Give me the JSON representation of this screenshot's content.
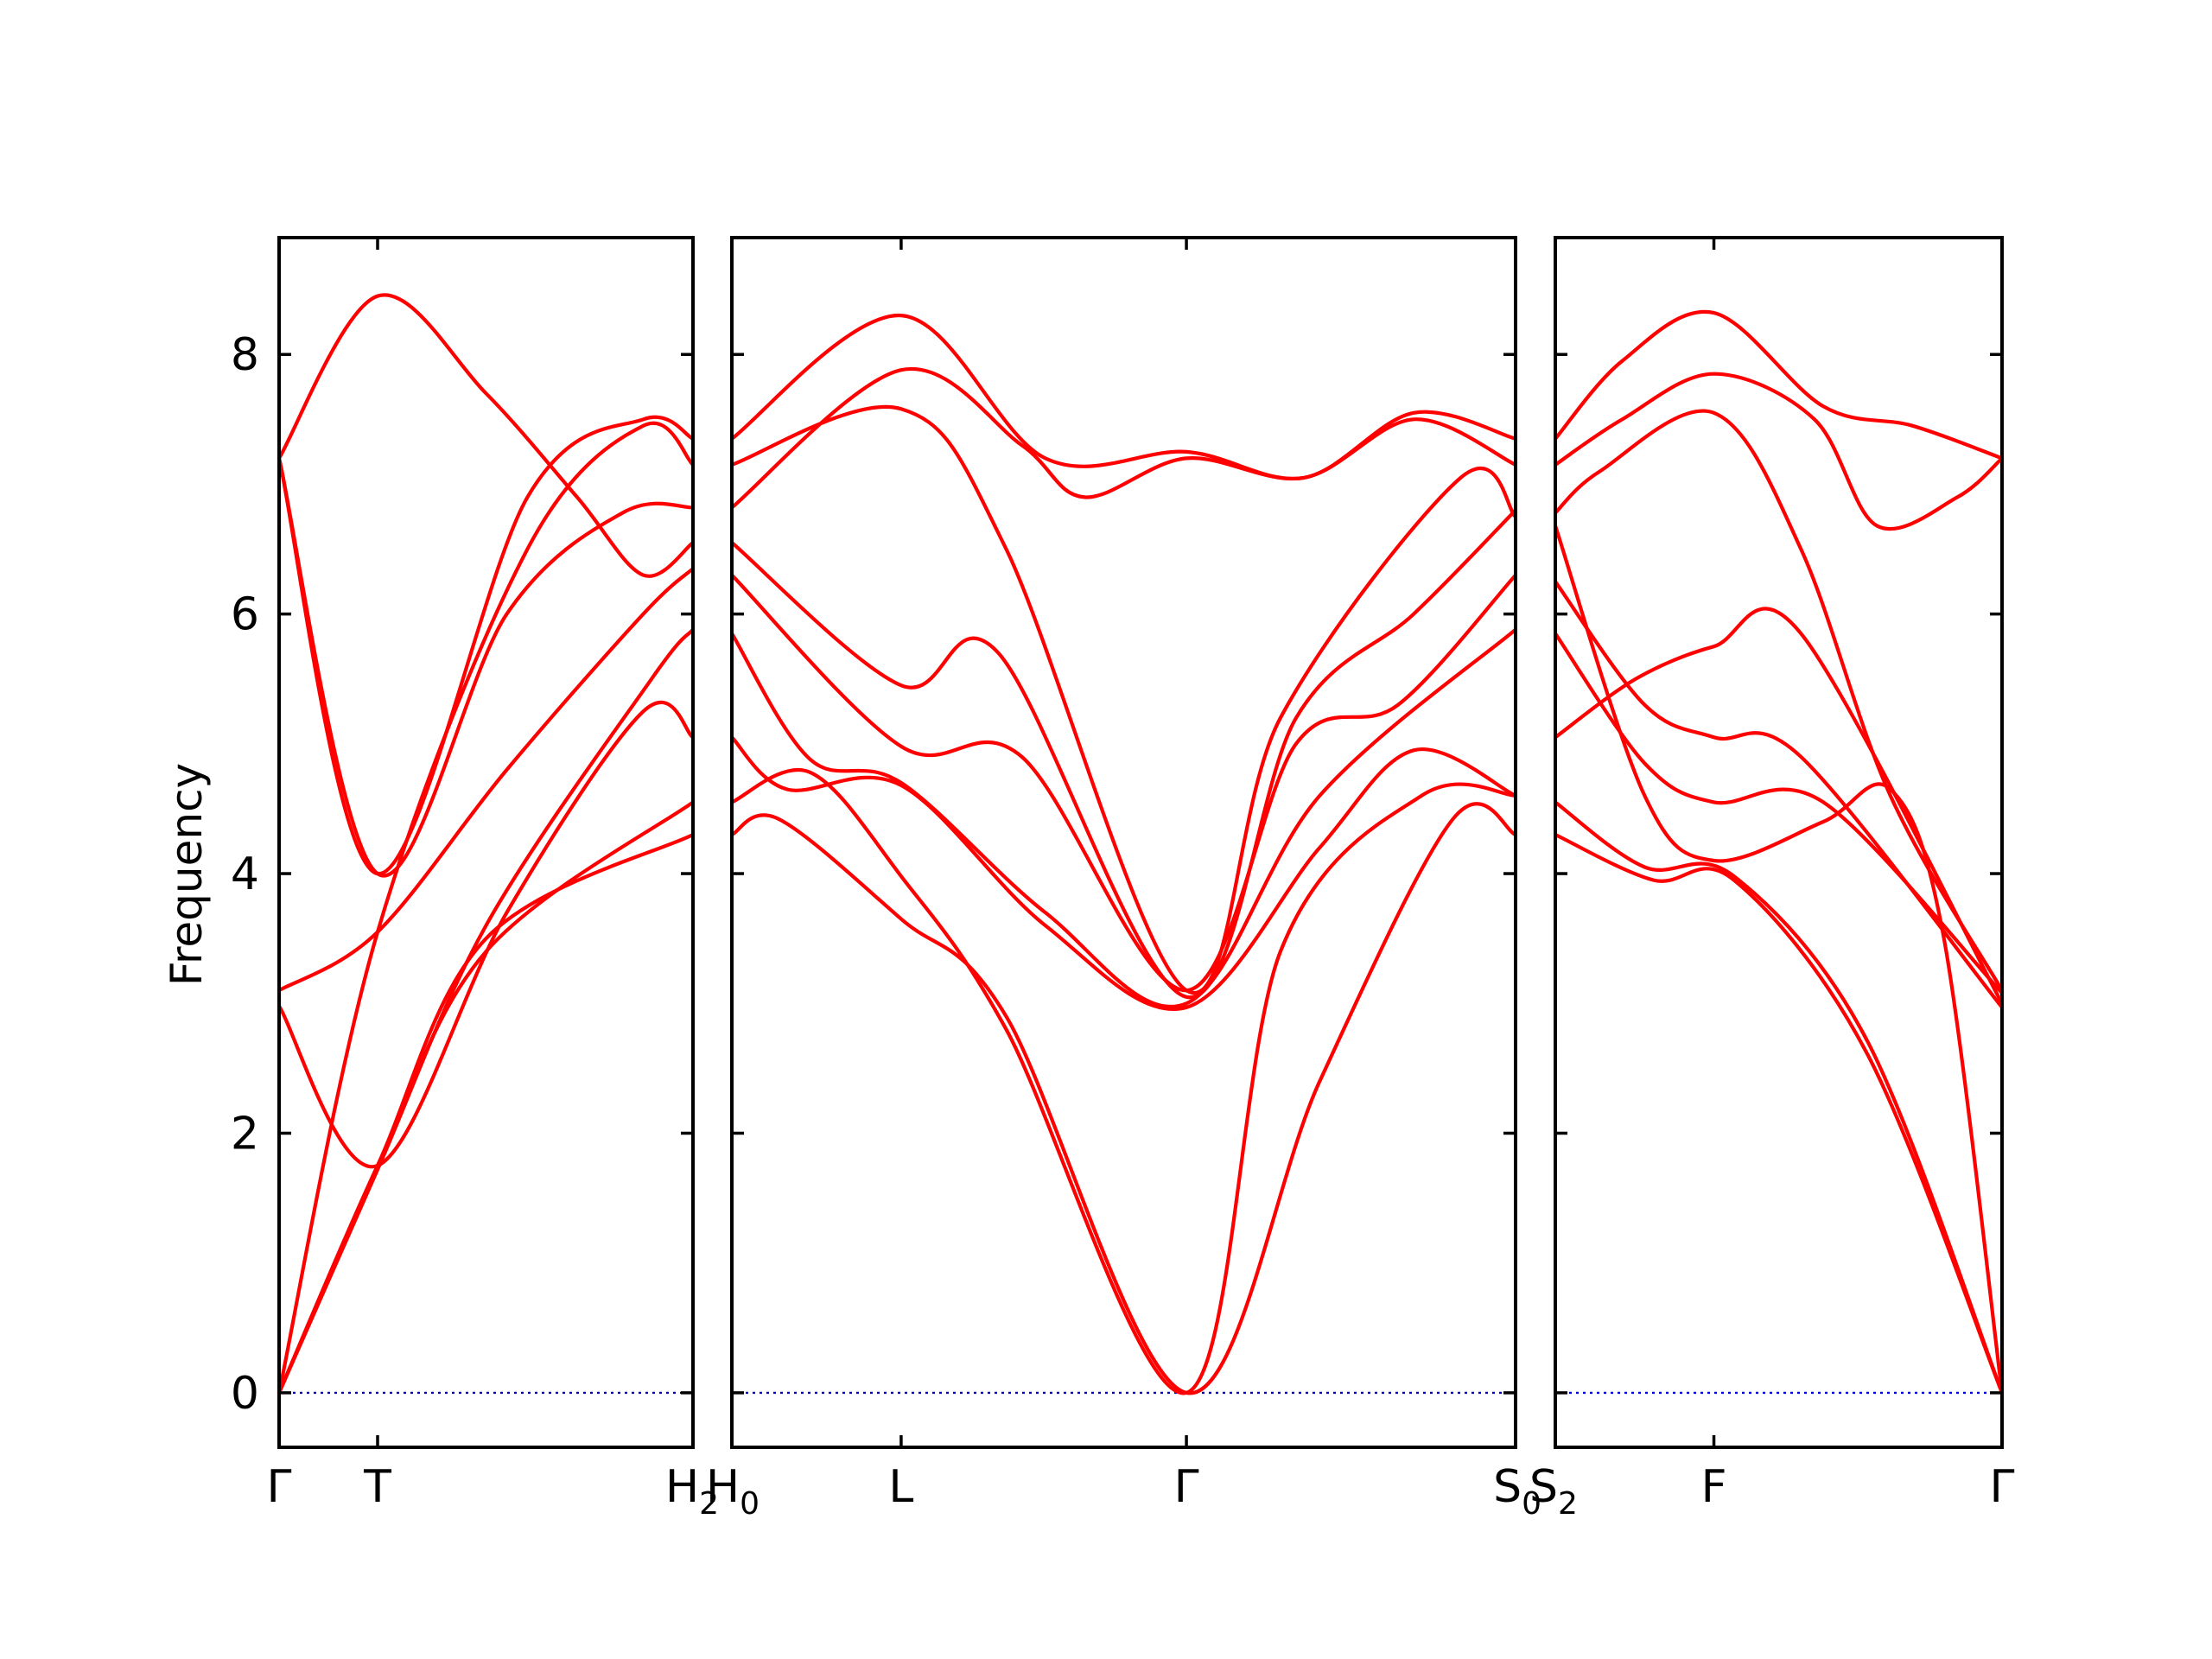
{
  "chart_data": {
    "type": "line",
    "ylabel": "Frequency",
    "ylim": [
      -0.42,
      8.9
    ],
    "yticks": [
      0,
      2,
      4,
      6,
      8
    ],
    "colors": {
      "band": "#ff0000",
      "zero_line": "#0000cc",
      "frame": "#000000"
    },
    "panels": [
      {
        "name": "Γ-T-H2",
        "xlim": [
          0,
          1
        ],
        "ticks": [
          {
            "x": 0,
            "label": "Γ",
            "sub": ""
          },
          {
            "x": 0.238,
            "label": "T",
            "sub": ""
          },
          {
            "x": 1,
            "label": "H",
            "sub": "2"
          }
        ],
        "bands": [
          {
            "x": [
              0,
              0.238,
              0.5,
              1
            ],
            "y": [
              0,
              1.75,
              3.5,
              4.3
            ]
          },
          {
            "x": [
              0,
              0.238,
              0.5,
              1
            ],
            "y": [
              0,
              1.75,
              3.4,
              4.55
            ]
          },
          {
            "x": [
              0,
              0.238,
              0.55,
              0.88,
              1
            ],
            "y": [
              2.98,
              1.75,
              3.7,
              5.25,
              5.05
            ]
          },
          {
            "x": [
              0,
              0.238,
              0.5,
              0.9,
              1
            ],
            "y": [
              0,
              1.72,
              3.6,
              5.5,
              5.88
            ]
          },
          {
            "x": [
              0,
              0.238,
              0.55,
              0.88,
              1
            ],
            "y": [
              3.1,
              3.55,
              4.8,
              6.0,
              6.35
            ]
          },
          {
            "x": [
              0,
              0.238,
              0.55,
              0.83,
              1
            ],
            "y": [
              7.2,
              4.0,
              6.0,
              6.78,
              6.82
            ]
          },
          {
            "x": [
              0,
              0.238,
              0.6,
              0.88,
              1
            ],
            "y": [
              0,
              3.55,
              6.5,
              7.45,
              7.15
            ]
          },
          {
            "x": [
              0,
              0.238,
              0.5,
              0.72,
              0.88,
              1
            ],
            "y": [
              7.2,
              8.45,
              7.7,
              6.9,
              6.3,
              6.55
            ]
          },
          {
            "x": [
              0,
              0.238,
              0.6,
              0.88,
              1
            ],
            "y": [
              7.2,
              4.0,
              6.9,
              7.5,
              7.35
            ]
          }
        ]
      },
      {
        "name": "H0-L-Γ-S0",
        "xlim": [
          0,
          1
        ],
        "ticks": [
          {
            "x": 0,
            "label": "H",
            "sub": "0"
          },
          {
            "x": 0.216,
            "label": "L",
            "sub": ""
          },
          {
            "x": 0.58,
            "label": "Γ",
            "sub": ""
          },
          {
            "x": 1,
            "label": "S",
            "sub": "0"
          }
        ],
        "bands": [
          {
            "x": [
              0,
              0.06,
              0.216,
              0.35,
              0.58,
              0.75,
              0.92,
              1
            ],
            "y": [
              4.3,
              4.42,
              3.65,
              2.9,
              0,
              2.4,
              4.42,
              4.3
            ]
          },
          {
            "x": [
              0,
              0.1,
              0.216,
              0.35,
              0.58,
              0.7,
              0.88,
              1
            ],
            "y": [
              4.55,
              4.78,
              3.98,
              2.8,
              0,
              3.4,
              4.6,
              4.6
            ]
          },
          {
            "x": [
              0,
              0.07,
              0.216,
              0.4,
              0.58,
              0.75,
              0.87,
              1
            ],
            "y": [
              5.05,
              4.65,
              4.68,
              3.6,
              2.97,
              4.2,
              4.95,
              4.6
            ]
          },
          {
            "x": [
              0,
              0.1,
              0.216,
              0.4,
              0.58,
              0.75,
              1
            ],
            "y": [
              5.85,
              4.88,
              4.7,
              3.7,
              3.0,
              4.6,
              5.88
            ]
          },
          {
            "x": [
              0,
              0.216,
              0.37,
              0.58,
              0.72,
              0.85,
              1
            ],
            "y": [
              6.3,
              4.98,
              4.9,
              3.1,
              5.0,
              5.3,
              6.3
            ]
          },
          {
            "x": [
              0,
              0.216,
              0.34,
              0.58,
              0.72,
              0.87,
              1
            ],
            "y": [
              6.55,
              5.45,
              5.7,
              3.05,
              5.2,
              6.0,
              6.8
            ]
          },
          {
            "x": [
              0,
              0.216,
              0.35,
              0.58,
              0.7,
              0.93,
              1
            ],
            "y": [
              7.15,
              7.58,
              6.5,
              3.1,
              5.2,
              7.05,
              6.75
            ]
          },
          {
            "x": [
              0,
              0.216,
              0.37,
              0.45,
              0.58,
              0.73,
              0.87,
              1
            ],
            "y": [
              6.82,
              7.88,
              7.3,
              6.9,
              7.2,
              7.05,
              7.5,
              7.15
            ]
          },
          {
            "x": [
              0,
              0.216,
              0.4,
              0.58,
              0.73,
              0.87,
              1
            ],
            "y": [
              7.35,
              8.3,
              7.2,
              7.25,
              7.05,
              7.55,
              7.35
            ]
          }
        ]
      },
      {
        "name": "S2-F-Γ",
        "xlim": [
          0,
          1
        ],
        "ticks": [
          {
            "x": 0,
            "label": "S",
            "sub": "2"
          },
          {
            "x": 0.355,
            "label": "F",
            "sub": ""
          },
          {
            "x": 1,
            "label": "Γ",
            "sub": ""
          }
        ],
        "bands": [
          {
            "x": [
              0,
              0.22,
              0.4,
              0.7,
              1
            ],
            "y": [
              4.3,
              3.95,
              3.95,
              2.6,
              0
            ]
          },
          {
            "x": [
              0,
              0.2,
              0.4,
              0.7,
              1
            ],
            "y": [
              4.55,
              4.05,
              3.98,
              2.7,
              0
            ]
          },
          {
            "x": [
              0,
              0.2,
              0.355,
              0.6,
              0.75,
              0.87,
              1
            ],
            "y": [
              6.68,
              4.6,
              4.1,
              4.4,
              4.65,
              3.5,
              0
            ]
          },
          {
            "x": [
              0,
              0.2,
              0.355,
              0.6,
              1
            ],
            "y": [
              5.85,
              4.85,
              4.55,
              4.55,
              3.08
            ]
          },
          {
            "x": [
              0,
              0.2,
              0.355,
              0.55,
              1
            ],
            "y": [
              6.25,
              5.3,
              5.05,
              4.9,
              2.97
            ]
          },
          {
            "x": [
              0,
              0.18,
              0.355,
              0.55,
              1
            ],
            "y": [
              5.05,
              5.5,
              5.75,
              5.85,
              3.0
            ]
          },
          {
            "x": [
              0,
              0.1,
              0.355,
              0.55,
              0.75,
              1
            ],
            "y": [
              6.78,
              7.1,
              7.55,
              6.5,
              4.6,
              3.1
            ]
          },
          {
            "x": [
              0,
              0.15,
              0.355,
              0.58,
              0.72,
              0.9,
              1
            ],
            "y": [
              7.15,
              7.5,
              7.85,
              7.5,
              6.68,
              6.9,
              7.2
            ]
          },
          {
            "x": [
              0,
              0.15,
              0.355,
              0.6,
              0.8,
              1
            ],
            "y": [
              7.35,
              7.95,
              8.32,
              7.6,
              7.45,
              7.2
            ]
          }
        ]
      }
    ]
  }
}
